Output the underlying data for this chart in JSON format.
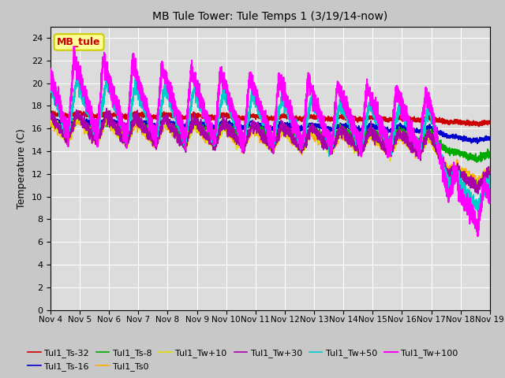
{
  "title": "MB Tule Tower: Tule Temps 1 (3/19/14-now)",
  "ylabel": "Temperature (C)",
  "annotation_label": "MB_tule",
  "annotation_color": "#cc0000",
  "annotation_bg": "#ffff99",
  "annotation_border": "#cccc00",
  "ylim": [
    0,
    25
  ],
  "yticks": [
    0,
    2,
    4,
    6,
    8,
    10,
    12,
    14,
    16,
    18,
    20,
    22,
    24
  ],
  "xticklabels": [
    "Nov 4",
    "Nov 5",
    "Nov 6",
    "Nov 7",
    "Nov 8",
    "Nov 9",
    "Nov 10",
    "Nov 11",
    "Nov 12",
    "Nov 13",
    "Nov 14",
    "Nov 15",
    "Nov 16",
    "Nov 17",
    "Nov 18",
    "Nov 19"
  ],
  "fig_bg": "#c8c8c8",
  "ax_bg": "#dcdcdc",
  "grid_color": "#ffffff",
  "series": [
    {
      "label": "Tul1_Ts-32",
      "color": "#cc0000",
      "lw": 1.2
    },
    {
      "label": "Tul1_Ts-16",
      "color": "#0000cc",
      "lw": 1.2
    },
    {
      "label": "Tul1_Ts-8",
      "color": "#00aa00",
      "lw": 1.2
    },
    {
      "label": "Tul1_Ts0",
      "color": "#ffaa00",
      "lw": 1.2
    },
    {
      "label": "Tul1_Tw+10",
      "color": "#dddd00",
      "lw": 1.2
    },
    {
      "label": "Tul1_Tw+30",
      "color": "#aa00aa",
      "lw": 1.2
    },
    {
      "label": "Tul1_Tw+50",
      "color": "#00cccc",
      "lw": 1.2
    },
    {
      "label": "Tul1_Tw+100",
      "color": "#ff00ff",
      "lw": 1.5
    }
  ],
  "legend_ncol": 6,
  "legend_fontsize": 8
}
